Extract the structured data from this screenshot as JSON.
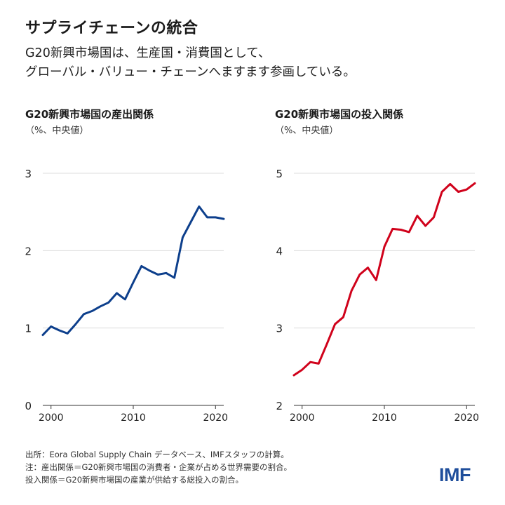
{
  "header": {
    "title": "サプライチェーンの統合",
    "subtitle_line1": "G20新興市場国は、生産国・消費国として、",
    "subtitle_line2": "グローバル・バリュー・チェーンへますます参画している。"
  },
  "chart_data": [
    {
      "type": "line",
      "title": "G20新興市場国の産出関係",
      "ylabel": "（%、中央値）",
      "x": [
        1999,
        2000,
        2001,
        2002,
        2003,
        2004,
        2005,
        2006,
        2007,
        2008,
        2009,
        2010,
        2011,
        2012,
        2013,
        2014,
        2015,
        2016,
        2017,
        2018,
        2019,
        2020,
        2021
      ],
      "values": [
        0.91,
        1.02,
        0.97,
        0.93,
        1.05,
        1.18,
        1.22,
        1.28,
        1.33,
        1.45,
        1.37,
        1.59,
        1.8,
        1.74,
        1.69,
        1.71,
        1.65,
        2.17,
        2.37,
        2.57,
        2.43,
        2.43,
        2.41
      ],
      "ylim": [
        0,
        3
      ],
      "yticks": [
        "0",
        "1",
        "2",
        "3"
      ],
      "xticks": [
        "2000",
        "2010",
        "2020"
      ],
      "color": "#0d3f8c",
      "grid": true
    },
    {
      "type": "line",
      "title": "G20新興市場国の投入関係",
      "ylabel": "（%、中央値）",
      "x": [
        1999,
        2000,
        2001,
        2002,
        2003,
        2004,
        2005,
        2006,
        2007,
        2008,
        2009,
        2010,
        2011,
        2012,
        2013,
        2014,
        2015,
        2016,
        2017,
        2018,
        2019,
        2020,
        2021
      ],
      "values": [
        2.39,
        2.46,
        2.56,
        2.54,
        2.79,
        3.05,
        3.14,
        3.48,
        3.69,
        3.78,
        3.62,
        4.05,
        4.28,
        4.27,
        4.24,
        4.45,
        4.32,
        4.43,
        4.76,
        4.86,
        4.76,
        4.79,
        4.87
      ],
      "ylim": [
        2,
        5
      ],
      "yticks": [
        "2",
        "3",
        "4",
        "5"
      ],
      "xticks": [
        "2000",
        "2010",
        "2020"
      ],
      "color": "#d0021b",
      "grid": true
    }
  ],
  "footer": {
    "source": "出所：Eora Global Supply Chain データベース、IMFスタッフの計算。",
    "note1": "注：産出関係＝G20新興市場国の消費者・企業が占める世界需要の割合。",
    "note2": "投入関係＝G20新興市場国の産業が供給する総投入の割合。",
    "logo": "IMF"
  }
}
